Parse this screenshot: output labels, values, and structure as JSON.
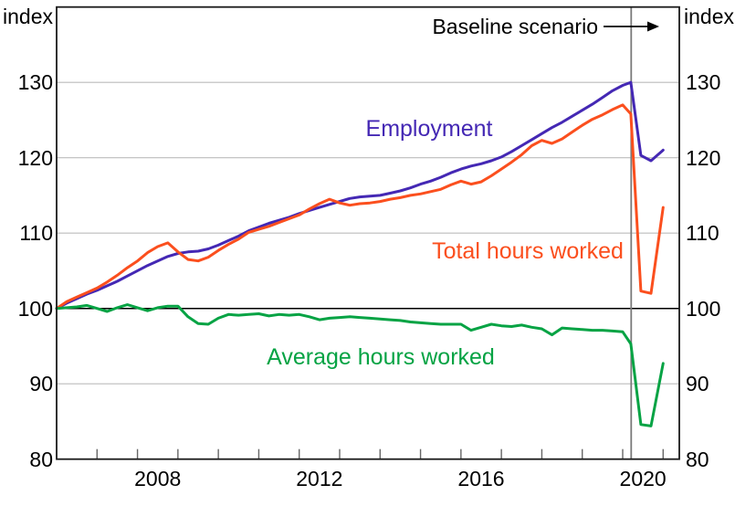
{
  "chart": {
    "unit_label_left": "index",
    "unit_label_right": "index",
    "annotation": {
      "text": "Baseline scenario"
    }
  },
  "colors": {
    "employment": "#4428b4",
    "total_hours": "#fb4f1e",
    "average_hours": "#06a344",
    "gridline": "#bbbbbb",
    "reference_line": "#000000",
    "scenario_line": "#7a7a7a",
    "axis_border": "#1a1a1a",
    "tick": "#666666"
  },
  "chart_data": {
    "type": "line",
    "title": "",
    "xlabel": "",
    "ylabel": "index",
    "x_axis": {
      "range": [
        2006,
        2021.4
      ],
      "tick_years": [
        2007,
        2008,
        2009,
        2010,
        2011,
        2012,
        2013,
        2014,
        2015,
        2016,
        2017,
        2018,
        2019,
        2020,
        2021
      ],
      "label_years": [
        2008,
        2012,
        2016,
        2020
      ]
    },
    "y_axis": {
      "range": [
        80,
        140
      ],
      "ticks": [
        80,
        90,
        100,
        110,
        120,
        130
      ],
      "gridlines": [
        90,
        110,
        120,
        130
      ],
      "reference_line": 100,
      "unit": "index"
    },
    "scenario_divider_x": 2020.21,
    "annotation": {
      "text": "Baseline scenario",
      "arrow_y": 29,
      "arrow_x1": 661,
      "arrow_x2": 722
    },
    "legend_position": "inline-labels",
    "grid": true,
    "series": [
      {
        "name": "Employment",
        "color": "#4428b4",
        "points": [
          [
            2006,
            100
          ],
          [
            2006.25,
            100.7
          ],
          [
            2006.5,
            101.3
          ],
          [
            2006.75,
            101.9
          ],
          [
            2007,
            102.4
          ],
          [
            2007.25,
            103
          ],
          [
            2007.5,
            103.6
          ],
          [
            2007.75,
            104.3
          ],
          [
            2008,
            105
          ],
          [
            2008.25,
            105.7
          ],
          [
            2008.5,
            106.3
          ],
          [
            2008.75,
            106.9
          ],
          [
            2009,
            107.3
          ],
          [
            2009.25,
            107.5
          ],
          [
            2009.5,
            107.6
          ],
          [
            2009.75,
            107.9
          ],
          [
            2010,
            108.4
          ],
          [
            2010.25,
            109
          ],
          [
            2010.5,
            109.6
          ],
          [
            2010.75,
            110.3
          ],
          [
            2011,
            110.8
          ],
          [
            2011.25,
            111.3
          ],
          [
            2011.5,
            111.7
          ],
          [
            2011.75,
            112.1
          ],
          [
            2012,
            112.6
          ],
          [
            2012.25,
            113
          ],
          [
            2012.5,
            113.4
          ],
          [
            2012.75,
            113.8
          ],
          [
            2013,
            114.2
          ],
          [
            2013.25,
            114.6
          ],
          [
            2013.5,
            114.8
          ],
          [
            2013.75,
            114.9
          ],
          [
            2014,
            115
          ],
          [
            2014.25,
            115.3
          ],
          [
            2014.5,
            115.6
          ],
          [
            2014.75,
            116
          ],
          [
            2015,
            116.5
          ],
          [
            2015.25,
            116.9
          ],
          [
            2015.5,
            117.4
          ],
          [
            2015.75,
            118
          ],
          [
            2016,
            118.5
          ],
          [
            2016.25,
            118.9
          ],
          [
            2016.5,
            119.2
          ],
          [
            2016.75,
            119.6
          ],
          [
            2017,
            120.1
          ],
          [
            2017.25,
            120.8
          ],
          [
            2017.5,
            121.6
          ],
          [
            2017.75,
            122.4
          ],
          [
            2018,
            123.2
          ],
          [
            2018.25,
            124
          ],
          [
            2018.5,
            124.7
          ],
          [
            2018.75,
            125.5
          ],
          [
            2019,
            126.3
          ],
          [
            2019.25,
            127.1
          ],
          [
            2019.5,
            128
          ],
          [
            2019.75,
            128.9
          ],
          [
            2020,
            129.6
          ],
          [
            2020.2,
            130
          ],
          [
            2020.45,
            120.3
          ],
          [
            2020.7,
            119.6
          ],
          [
            2021,
            121
          ]
        ]
      },
      {
        "name": "Total hours worked",
        "color": "#fb4f1e",
        "points": [
          [
            2006,
            100
          ],
          [
            2006.25,
            100.9
          ],
          [
            2006.5,
            101.5
          ],
          [
            2006.75,
            102.1
          ],
          [
            2007,
            102.7
          ],
          [
            2007.25,
            103.5
          ],
          [
            2007.5,
            104.4
          ],
          [
            2007.75,
            105.4
          ],
          [
            2008,
            106.3
          ],
          [
            2008.25,
            107.4
          ],
          [
            2008.5,
            108.2
          ],
          [
            2008.75,
            108.7
          ],
          [
            2009,
            107.5
          ],
          [
            2009.25,
            106.5
          ],
          [
            2009.5,
            106.3
          ],
          [
            2009.75,
            106.8
          ],
          [
            2010,
            107.7
          ],
          [
            2010.25,
            108.5
          ],
          [
            2010.5,
            109.2
          ],
          [
            2010.75,
            110.1
          ],
          [
            2011,
            110.5
          ],
          [
            2011.25,
            110.9
          ],
          [
            2011.5,
            111.4
          ],
          [
            2011.75,
            111.9
          ],
          [
            2012,
            112.4
          ],
          [
            2012.25,
            113.2
          ],
          [
            2012.5,
            113.9
          ],
          [
            2012.75,
            114.5
          ],
          [
            2013,
            114
          ],
          [
            2013.25,
            113.7
          ],
          [
            2013.5,
            113.9
          ],
          [
            2013.75,
            114
          ],
          [
            2014,
            114.2
          ],
          [
            2014.25,
            114.5
          ],
          [
            2014.5,
            114.7
          ],
          [
            2014.75,
            115
          ],
          [
            2015,
            115.2
          ],
          [
            2015.25,
            115.5
          ],
          [
            2015.5,
            115.8
          ],
          [
            2015.75,
            116.4
          ],
          [
            2016,
            116.9
          ],
          [
            2016.25,
            116.5
          ],
          [
            2016.5,
            116.8
          ],
          [
            2016.75,
            117.6
          ],
          [
            2017,
            118.5
          ],
          [
            2017.25,
            119.4
          ],
          [
            2017.5,
            120.4
          ],
          [
            2017.75,
            121.6
          ],
          [
            2018,
            122.3
          ],
          [
            2018.25,
            121.9
          ],
          [
            2018.5,
            122.5
          ],
          [
            2018.75,
            123.4
          ],
          [
            2019,
            124.3
          ],
          [
            2019.25,
            125.1
          ],
          [
            2019.5,
            125.7
          ],
          [
            2019.75,
            126.4
          ],
          [
            2020,
            127
          ],
          [
            2020.2,
            125.8
          ],
          [
            2020.45,
            102.3
          ],
          [
            2020.7,
            102
          ],
          [
            2021,
            113.4
          ]
        ]
      },
      {
        "name": "Average hours worked",
        "color": "#06a344",
        "points": [
          [
            2006,
            100
          ],
          [
            2006.25,
            100.1
          ],
          [
            2006.5,
            100.2
          ],
          [
            2006.75,
            100.4
          ],
          [
            2007,
            100
          ],
          [
            2007.25,
            99.6
          ],
          [
            2007.5,
            100.1
          ],
          [
            2007.75,
            100.5
          ],
          [
            2008,
            100.1
          ],
          [
            2008.25,
            99.7
          ],
          [
            2008.5,
            100.1
          ],
          [
            2008.75,
            100.3
          ],
          [
            2009,
            100.3
          ],
          [
            2009.25,
            98.9
          ],
          [
            2009.5,
            98
          ],
          [
            2009.75,
            97.9
          ],
          [
            2010,
            98.7
          ],
          [
            2010.25,
            99.2
          ],
          [
            2010.5,
            99.1
          ],
          [
            2010.75,
            99.2
          ],
          [
            2011,
            99.3
          ],
          [
            2011.25,
            99
          ],
          [
            2011.5,
            99.2
          ],
          [
            2011.75,
            99.1
          ],
          [
            2012,
            99.2
          ],
          [
            2012.25,
            98.9
          ],
          [
            2012.5,
            98.5
          ],
          [
            2012.75,
            98.7
          ],
          [
            2013,
            98.8
          ],
          [
            2013.25,
            98.9
          ],
          [
            2013.5,
            98.8
          ],
          [
            2013.75,
            98.7
          ],
          [
            2014,
            98.6
          ],
          [
            2014.25,
            98.5
          ],
          [
            2014.5,
            98.4
          ],
          [
            2014.75,
            98.2
          ],
          [
            2015,
            98.1
          ],
          [
            2015.25,
            98
          ],
          [
            2015.5,
            97.9
          ],
          [
            2015.75,
            97.9
          ],
          [
            2016,
            97.9
          ],
          [
            2016.25,
            97.1
          ],
          [
            2016.5,
            97.5
          ],
          [
            2016.75,
            97.9
          ],
          [
            2017,
            97.7
          ],
          [
            2017.25,
            97.6
          ],
          [
            2017.5,
            97.8
          ],
          [
            2017.75,
            97.5
          ],
          [
            2018,
            97.3
          ],
          [
            2018.25,
            96.5
          ],
          [
            2018.5,
            97.4
          ],
          [
            2018.75,
            97.3
          ],
          [
            2019,
            97.2
          ],
          [
            2019.25,
            97.1
          ],
          [
            2019.5,
            97.1
          ],
          [
            2019.75,
            97
          ],
          [
            2020,
            96.9
          ],
          [
            2020.2,
            95.3
          ],
          [
            2020.45,
            84.6
          ],
          [
            2020.7,
            84.4
          ],
          [
            2021,
            92.7
          ]
        ]
      }
    ]
  }
}
